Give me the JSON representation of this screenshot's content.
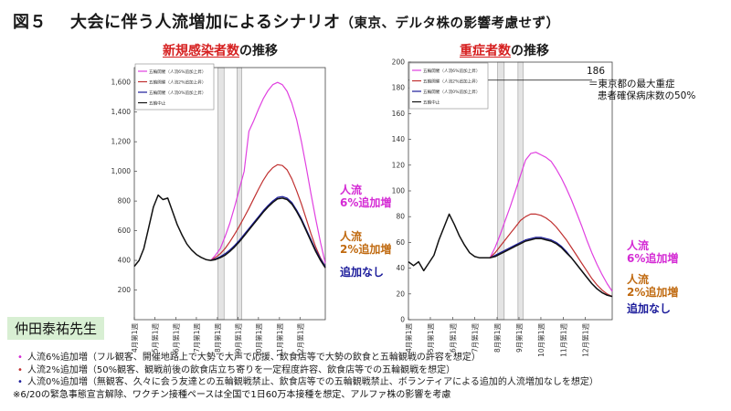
{
  "page": {
    "title_fig": "図５",
    "title_main": "大会に伴う人流増加によるシナリオ",
    "title_sub": "（東京、デルタ株の影響考慮せず）",
    "teacher": "仲田泰祐先生"
  },
  "colors": {
    "magenta": "#e040e0",
    "red": "#c03030",
    "blue": "#1a1a9a",
    "black": "#111111",
    "label_magenta": "#d42ad4",
    "label_orange": "#c06a10",
    "label_navy": "#1a1a9a"
  },
  "chart_data": [
    {
      "type": "line",
      "title_highlight": "新規感染者数",
      "title_rest": "の推移",
      "ylim": [
        0,
        1700
      ],
      "yticks": [
        "200",
        "400",
        "600",
        "800",
        "1,000",
        "1,200",
        "1,400",
        "1,600"
      ],
      "yticks_values": [
        200,
        400,
        600,
        800,
        1000,
        1200,
        1400,
        1600
      ],
      "xlim": [
        0,
        40
      ],
      "xticks": [
        "4月第1週",
        "5月第1週",
        "6月第1週",
        "7月第1週",
        "8月第1週",
        "9月第1週",
        "10月第1週",
        "11月第1週",
        "12月第1週"
      ],
      "xticks_values": [
        0,
        4.3,
        8.7,
        13,
        17.4,
        21.7,
        26,
        30.4,
        34.7
      ],
      "shaded_weeks": [
        [
          17.5,
          18.8
        ],
        [
          21.5,
          22.5
        ]
      ],
      "legend": [
        "五輪開催（人流6%追加上昇）",
        "五輪開催（人流2%追加上昇）",
        "五輪開催（人流0%追加上昇）",
        "五輪中止"
      ],
      "series": [
        {
          "name": "人流6%追加増",
          "color": "magenta",
          "x": [
            16,
            17,
            18,
            19,
            20,
            21,
            22,
            23,
            24,
            25,
            26,
            27,
            28,
            29,
            30,
            31,
            32,
            33,
            34,
            35,
            36,
            37,
            38,
            39,
            40
          ],
          "y": [
            400,
            435,
            480,
            560,
            650,
            760,
            880,
            1000,
            1270,
            1340,
            1420,
            1490,
            1545,
            1585,
            1600,
            1585,
            1540,
            1460,
            1350,
            1200,
            1030,
            850,
            680,
            520,
            380
          ]
        },
        {
          "name": "人流2%追加増",
          "color": "red",
          "x": [
            16,
            17,
            18,
            19,
            20,
            21,
            22,
            23,
            24,
            25,
            26,
            27,
            28,
            29,
            30,
            31,
            32,
            33,
            34,
            35,
            36,
            37,
            38,
            39,
            40
          ],
          "y": [
            400,
            420,
            445,
            480,
            525,
            575,
            630,
            690,
            750,
            815,
            880,
            940,
            990,
            1025,
            1045,
            1040,
            1010,
            950,
            870,
            780,
            680,
            580,
            490,
            415,
            360
          ]
        },
        {
          "name": "追加なし",
          "color": "blue",
          "x": [
            16,
            17,
            18,
            19,
            20,
            21,
            22,
            23,
            24,
            25,
            26,
            27,
            28,
            29,
            30,
            31,
            32,
            33,
            34,
            35,
            36,
            37,
            38,
            39,
            40
          ],
          "y": [
            400,
            410,
            425,
            445,
            470,
            500,
            535,
            575,
            615,
            655,
            695,
            735,
            770,
            800,
            825,
            830,
            820,
            790,
            740,
            680,
            610,
            540,
            470,
            410,
            360
          ]
        },
        {
          "name": "五輪中止",
          "color": "black",
          "x": [
            0,
            1,
            2,
            3,
            4,
            5,
            6,
            7,
            8,
            9,
            10,
            11,
            12,
            13,
            14,
            15,
            16,
            17,
            18,
            19,
            20,
            21,
            22,
            23,
            24,
            25,
            26,
            27,
            28,
            29,
            30,
            31,
            32,
            33,
            34,
            35,
            36,
            37,
            38,
            39,
            40
          ],
          "y": [
            360,
            400,
            480,
            620,
            760,
            840,
            810,
            820,
            730,
            640,
            570,
            510,
            470,
            440,
            420,
            405,
            400,
            405,
            418,
            435,
            460,
            490,
            525,
            565,
            605,
            645,
            685,
            725,
            760,
            790,
            815,
            820,
            810,
            780,
            730,
            670,
            600,
            530,
            460,
            400,
            350
          ]
        }
      ],
      "series_labels": [
        {
          "text": "人流\n6%追加増",
          "color": "label_magenta"
        },
        {
          "text": "人流\n2%追加増",
          "color": "label_orange"
        },
        {
          "text": "追加なし",
          "color": "label_navy"
        }
      ]
    },
    {
      "type": "line",
      "title_highlight": "重症者数",
      "title_rest": "の推移",
      "ylim": [
        0,
        200
      ],
      "yticks": [
        "0",
        "20",
        "40",
        "60",
        "80",
        "100",
        "120",
        "140",
        "160",
        "180",
        "200"
      ],
      "yticks_values": [
        0,
        20,
        40,
        60,
        80,
        100,
        120,
        140,
        160,
        180,
        200
      ],
      "xlim": [
        0,
        40
      ],
      "xticks": [
        "4月第1週",
        "5月第1週",
        "6月第1週",
        "7月第1週",
        "8月第1週",
        "9月第1週",
        "10月第1週",
        "11月第1週",
        "12月第1週"
      ],
      "xticks_values": [
        0,
        4.3,
        8.7,
        13,
        17.4,
        21.7,
        26,
        30.4,
        34.7
      ],
      "shaded_weeks": [
        [
          17.5,
          18.8
        ],
        [
          21.5,
          22.5
        ]
      ],
      "legend": [
        "五輪開催（人流6%追加上昇）",
        "五輪開催（人流2%追加上昇）",
        "五輪開催（人流0%追加上昇）",
        "五輪中止"
      ],
      "reference_line": {
        "value": 186,
        "label": "186",
        "note": "＝東京都の最大重症\n患者確保病床数の50%"
      },
      "series": [
        {
          "name": "人流6%追加増",
          "color": "magenta",
          "x": [
            16,
            17,
            18,
            19,
            20,
            21,
            22,
            23,
            24,
            25,
            26,
            27,
            28,
            29,
            30,
            31,
            32,
            33,
            34,
            35,
            36,
            37,
            38,
            39,
            40
          ],
          "y": [
            48,
            56,
            66,
            77,
            88,
            100,
            112,
            124,
            129,
            130,
            128,
            126,
            123,
            117,
            110,
            102,
            93,
            83,
            73,
            62,
            52,
            43,
            35,
            28,
            22
          ]
        },
        {
          "name": "人流2%追加増",
          "color": "red",
          "x": [
            16,
            17,
            18,
            19,
            20,
            21,
            22,
            23,
            24,
            25,
            26,
            27,
            28,
            29,
            30,
            31,
            32,
            33,
            34,
            35,
            36,
            37,
            38,
            39,
            40
          ],
          "y": [
            48,
            52,
            57,
            62,
            67,
            72,
            77,
            80,
            82,
            82,
            81,
            79,
            76,
            72,
            67,
            62,
            56,
            50,
            44,
            38,
            32,
            27,
            23,
            20,
            18
          ]
        },
        {
          "name": "追加なし",
          "color": "blue",
          "x": [
            16,
            17,
            18,
            19,
            20,
            21,
            22,
            23,
            24,
            25,
            26,
            27,
            28,
            29,
            30,
            31,
            32,
            33,
            34,
            35,
            36,
            37,
            38,
            39,
            40
          ],
          "y": [
            48,
            50,
            52,
            54,
            56,
            58,
            60,
            62,
            63,
            64,
            64,
            63,
            62,
            60,
            57,
            53,
            48,
            43,
            38,
            33,
            28,
            24,
            21,
            19,
            18
          ]
        },
        {
          "name": "五輪中止",
          "color": "black",
          "x": [
            0,
            1,
            2,
            3,
            4,
            5,
            6,
            7,
            8,
            9,
            10,
            11,
            12,
            13,
            14,
            15,
            16,
            17,
            18,
            19,
            20,
            21,
            22,
            23,
            24,
            25,
            26,
            27,
            28,
            29,
            30,
            31,
            32,
            33,
            34,
            35,
            36,
            37,
            38,
            39,
            40
          ],
          "y": [
            45,
            42,
            45,
            38,
            44,
            50,
            62,
            72,
            82,
            74,
            65,
            58,
            52,
            49,
            48,
            48,
            48,
            49,
            51,
            53,
            55,
            57,
            59,
            61,
            62,
            63,
            63,
            62,
            61,
            59,
            56,
            52,
            48,
            43,
            38,
            33,
            28,
            24,
            21,
            19,
            18
          ]
        }
      ],
      "series_labels": [
        {
          "text": "人流\n6%追加増",
          "color": "label_magenta"
        },
        {
          "text": "人流\n2%追加増",
          "color": "label_orange"
        },
        {
          "text": "追加なし",
          "color": "label_navy"
        }
      ]
    }
  ],
  "notes": [
    {
      "bullet": "•",
      "text": "人流6%追加増（フル観客、開催地路上で大勢で大声で応援、飲食店等で大勢の飲食と五輪観戦の許容を想定）",
      "color": "label_magenta"
    },
    {
      "bullet": "•",
      "text": "人流2%追加増（50%観客、観戦前後の飲食店立ち寄りを一定程度許容、飲食店等での五輪観戦を想定）",
      "color": "red"
    },
    {
      "bullet": "•",
      "text": "人流0%追加増（無観客、久々に会う友達との五輪観戦禁止、飲食店等での五輪観戦禁止、ボランティアによる追加的人流増加なしを想定）",
      "color": "label_navy"
    },
    {
      "bullet": "",
      "text": "※6/20の緊急事態宣言解除、ワクチン接種ペースは全国で1日60万本接種を想定、アルファ株の影響を考慮",
      "color": "black"
    }
  ]
}
